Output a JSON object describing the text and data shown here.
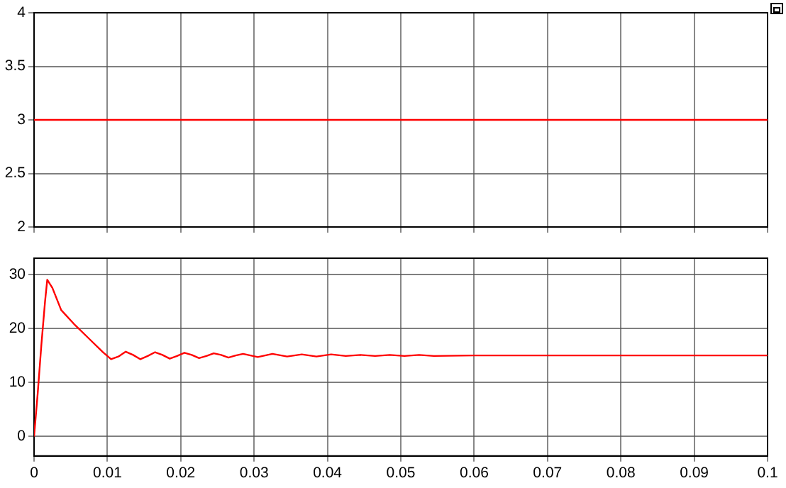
{
  "chart_data": [
    {
      "type": "line",
      "x": [
        0,
        0.1
      ],
      "series": [
        {
          "color": "#ff0000",
          "values": [
            3,
            3
          ]
        }
      ],
      "xlim": [
        0,
        0.1
      ],
      "xticks": [
        0,
        0.01,
        0.02,
        0.03,
        0.04,
        0.05,
        0.06,
        0.07,
        0.08,
        0.09,
        0.1
      ],
      "ylim": [
        2,
        4
      ],
      "yticks": [
        2,
        2.5,
        3,
        3.5,
        4
      ],
      "grid": true,
      "tick_labels": "y",
      "legend": false,
      "marker": "none"
    },
    {
      "type": "line",
      "x": [
        0,
        0.0005,
        0.001,
        0.0015,
        0.0018,
        0.0025,
        0.0037,
        0.0056,
        0.0075,
        0.0094,
        0.0105,
        0.0115,
        0.0125,
        0.0135,
        0.0145,
        0.0155,
        0.0165,
        0.0175,
        0.0185,
        0.0195,
        0.0205,
        0.0215,
        0.0225,
        0.0235,
        0.0245,
        0.0255,
        0.0265,
        0.0275,
        0.0285,
        0.0305,
        0.0325,
        0.0345,
        0.0365,
        0.0385,
        0.0405,
        0.0425,
        0.0445,
        0.0465,
        0.0485,
        0.0505,
        0.0525,
        0.0545,
        0.06,
        0.07,
        0.08,
        0.09,
        0.1
      ],
      "series": [
        {
          "color": "#ff0000",
          "values": [
            0,
            8,
            17,
            25,
            29,
            27.5,
            23.4,
            20.6,
            18.1,
            15.6,
            14.3,
            14.8,
            15.7,
            15.1,
            14.3,
            14.9,
            15.6,
            15.1,
            14.4,
            14.9,
            15.5,
            15.1,
            14.5,
            14.9,
            15.4,
            15.1,
            14.6,
            15,
            15.3,
            14.7,
            15.3,
            14.8,
            15.2,
            14.8,
            15.2,
            14.9,
            15.1,
            14.9,
            15.1,
            14.9,
            15.1,
            14.9,
            15,
            15,
            15,
            15,
            15
          ]
        }
      ],
      "xlim": [
        0,
        0.1
      ],
      "xticks": [
        0,
        0.01,
        0.02,
        0.03,
        0.04,
        0.05,
        0.06,
        0.07,
        0.08,
        0.09,
        0.1
      ],
      "ylim": [
        -3.6,
        33
      ],
      "yticks": [
        0,
        10,
        20,
        30
      ],
      "grid": true,
      "legend": false,
      "marker": "none"
    }
  ]
}
